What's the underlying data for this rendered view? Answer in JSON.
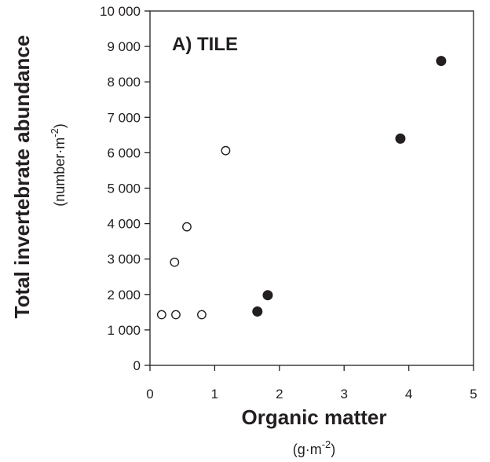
{
  "chart_data": {
    "type": "scatter",
    "panel_label": "A)  TILE",
    "xlabel": "Organic matter",
    "xlabel_unit": {
      "pre": "(g·m",
      "sup": "-2",
      "post": ")"
    },
    "ylabel": "Total invertebrate abundance",
    "ylabel_unit": {
      "pre": "(number·m",
      "sup": "-2",
      "post": ")"
    },
    "xlim": [
      0,
      5
    ],
    "ylim": [
      0,
      10000
    ],
    "x_ticks": [
      0,
      1,
      2,
      3,
      4,
      5
    ],
    "x_tick_labels": [
      "0",
      "1",
      "2",
      "3",
      "4",
      "5"
    ],
    "y_ticks": [
      0,
      1000,
      2000,
      3000,
      4000,
      5000,
      6000,
      7000,
      8000,
      9000,
      10000
    ],
    "y_tick_labels": [
      "0",
      "1 000",
      "2 000",
      "3 000",
      "4 000",
      "5 000",
      "6 000",
      "7 000",
      "8 000",
      "9 000",
      "10 000"
    ],
    "grid": false,
    "series": [
      {
        "marker": "open-circle",
        "color": "#231f20",
        "points": [
          {
            "x": 0.18,
            "y": 1430
          },
          {
            "x": 0.4,
            "y": 1430
          },
          {
            "x": 0.8,
            "y": 1430
          },
          {
            "x": 0.38,
            "y": 2910
          },
          {
            "x": 0.57,
            "y": 3910
          },
          {
            "x": 1.17,
            "y": 6060
          }
        ]
      },
      {
        "marker": "filled-circle",
        "color": "#231f20",
        "points": [
          {
            "x": 1.66,
            "y": 1520
          },
          {
            "x": 1.82,
            "y": 1980
          },
          {
            "x": 3.87,
            "y": 6400
          },
          {
            "x": 4.5,
            "y": 8590
          }
        ]
      }
    ]
  }
}
